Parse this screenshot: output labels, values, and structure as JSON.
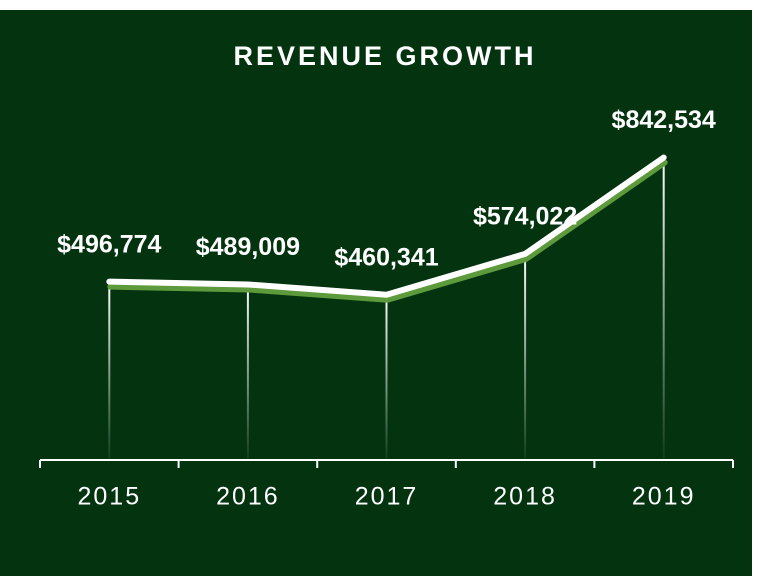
{
  "chart_data": {
    "type": "line",
    "title": "REVENUE GROWTH",
    "categories": [
      "2015",
      "2016",
      "2017",
      "2018",
      "2019"
    ],
    "values": [
      496774,
      489009,
      460341,
      574022,
      842534
    ],
    "value_labels": [
      "$496,774",
      "$489,009",
      "$460,341",
      "$574,022",
      "$842,534"
    ],
    "color": "#ffffff",
    "ylim": [
      0,
      1000000
    ]
  }
}
